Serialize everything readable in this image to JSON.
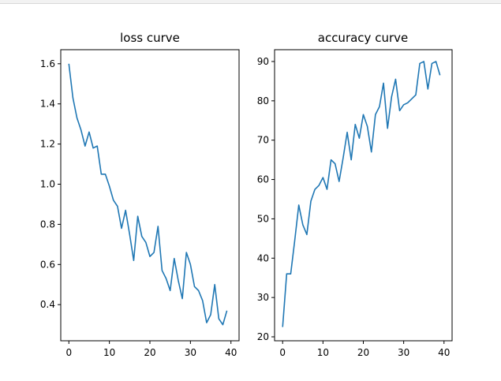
{
  "chart_data": [
    {
      "type": "line",
      "title": "loss curve",
      "xlabel": "",
      "ylabel": "",
      "xlim": [
        -2,
        42
      ],
      "ylim": [
        0.22,
        1.67
      ],
      "xticks": [
        0,
        10,
        20,
        30,
        40
      ],
      "yticks": [
        0.4,
        0.6,
        0.8,
        1.0,
        1.2,
        1.4,
        1.6
      ],
      "ytick_labels": [
        "0.4",
        "0.6",
        "0.8",
        "1.0",
        "1.2",
        "1.4",
        "1.6"
      ],
      "grid": false,
      "color": "#1f77b4",
      "x": [
        0,
        1,
        2,
        3,
        4,
        5,
        6,
        7,
        8,
        9,
        10,
        11,
        12,
        13,
        14,
        15,
        16,
        17,
        18,
        19,
        20,
        21,
        22,
        23,
        24,
        25,
        26,
        27,
        28,
        29,
        30,
        31,
        32,
        33,
        34,
        35,
        36,
        37,
        38,
        39
      ],
      "values": [
        1.6,
        1.43,
        1.33,
        1.27,
        1.19,
        1.26,
        1.18,
        1.19,
        1.05,
        1.05,
        0.99,
        0.92,
        0.89,
        0.78,
        0.87,
        0.75,
        0.62,
        0.84,
        0.74,
        0.71,
        0.64,
        0.66,
        0.79,
        0.57,
        0.53,
        0.47,
        0.63,
        0.52,
        0.43,
        0.66,
        0.6,
        0.49,
        0.47,
        0.42,
        0.31,
        0.35,
        0.5,
        0.33,
        0.3,
        0.37
      ]
    },
    {
      "type": "line",
      "title": "accuracy curve",
      "xlabel": "",
      "ylabel": "",
      "xlim": [
        -2,
        42
      ],
      "ylim": [
        19,
        93
      ],
      "xticks": [
        0,
        10,
        20,
        30,
        40
      ],
      "yticks": [
        20,
        30,
        40,
        50,
        60,
        70,
        80,
        90
      ],
      "ytick_labels": [
        "20",
        "30",
        "40",
        "50",
        "60",
        "70",
        "80",
        "90"
      ],
      "grid": false,
      "color": "#1f77b4",
      "x": [
        0,
        1,
        2,
        3,
        4,
        5,
        6,
        7,
        8,
        9,
        10,
        11,
        12,
        13,
        14,
        15,
        16,
        17,
        18,
        19,
        20,
        21,
        22,
        23,
        24,
        25,
        26,
        27,
        28,
        29,
        30,
        31,
        32,
        33,
        34,
        35,
        36,
        37,
        38,
        39
      ],
      "values": [
        22.5,
        36.0,
        36.0,
        44.5,
        53.5,
        48.5,
        46.0,
        54.5,
        57.5,
        58.5,
        60.5,
        57.5,
        65.0,
        64.0,
        59.5,
        65.5,
        72.0,
        65.0,
        74.0,
        70.5,
        76.5,
        73.5,
        67.0,
        76.5,
        78.5,
        84.5,
        73.0,
        81.0,
        85.5,
        77.5,
        79.0,
        79.5,
        80.5,
        81.5,
        89.5,
        90.0,
        83.0,
        89.5,
        90.0,
        86.5
      ]
    }
  ]
}
